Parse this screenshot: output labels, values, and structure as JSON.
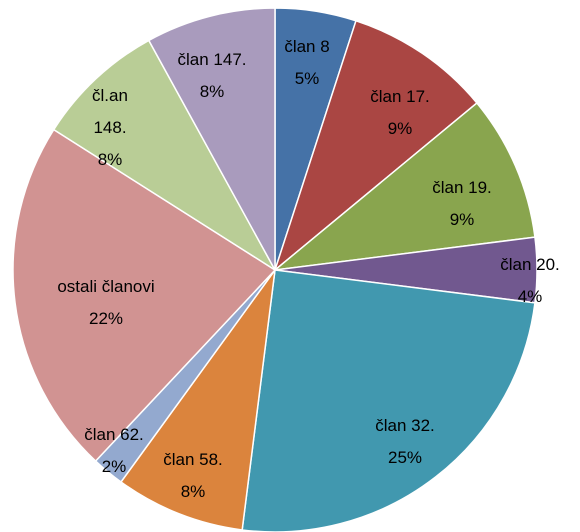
{
  "chart_data": {
    "type": "pie",
    "categories": [
      "član 8",
      "član 17.",
      "član 19.",
      "član 20.",
      "član 32.",
      "član 58.",
      "član 62.",
      "ostali članovi",
      "čl.an 148.",
      "član 147."
    ],
    "values": [
      5,
      9,
      9,
      4,
      25,
      8,
      2,
      22,
      8,
      8
    ],
    "value_labels": [
      "5%",
      "9%",
      "9%",
      "4%",
      "25%",
      "8%",
      "2%",
      "22%",
      "8%",
      "8%"
    ],
    "colors": [
      "#4572a7",
      "#aa4643",
      "#89a54e",
      "#71588f",
      "#4198af",
      "#db843d",
      "#93a9cf",
      "#d19392",
      "#b9cd96",
      "#a99bbd"
    ]
  }
}
